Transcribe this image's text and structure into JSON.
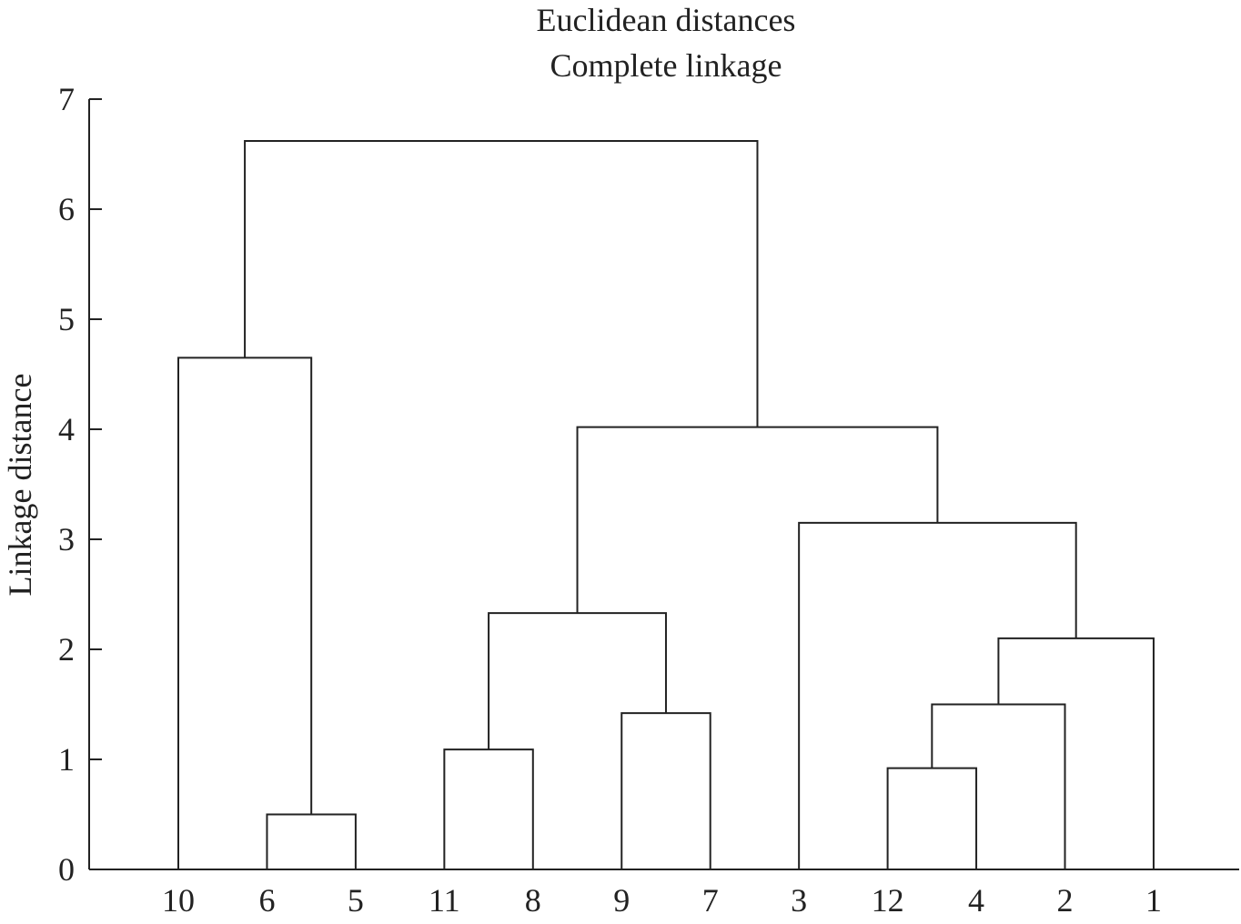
{
  "chart_data": {
    "type": "dendrogram",
    "title": "Euclidean distances",
    "subtitle": "Complete linkage",
    "ylabel": "Linkage distance",
    "xlabel": "",
    "ylim": [
      0,
      7
    ],
    "yticks": [
      0,
      1,
      2,
      3,
      4,
      5,
      6,
      7
    ],
    "leaf_order": [
      "10",
      "6",
      "5",
      "11",
      "8",
      "9",
      "7",
      "3",
      "12",
      "4",
      "2",
      "1"
    ],
    "merges": [
      {
        "id": "A",
        "left": "6",
        "right": "5",
        "height": 0.5
      },
      {
        "id": "B",
        "left": "12",
        "right": "4",
        "height": 0.92
      },
      {
        "id": "C",
        "left": "11",
        "right": "8",
        "height": 1.09
      },
      {
        "id": "D",
        "left": "9",
        "right": "7",
        "height": 1.42
      },
      {
        "id": "E",
        "left": "B",
        "right": "2",
        "height": 1.5
      },
      {
        "id": "F",
        "left": "E",
        "right": "1",
        "height": 2.1
      },
      {
        "id": "G",
        "left": "C",
        "right": "D",
        "height": 2.33
      },
      {
        "id": "H",
        "left": "3",
        "right": "F",
        "height": 3.15
      },
      {
        "id": "I",
        "left": "G",
        "right": "H",
        "height": 4.02
      },
      {
        "id": "J",
        "left": "10",
        "right": "A",
        "height": 4.65
      },
      {
        "id": "K",
        "left": "J",
        "right": "I",
        "height": 6.62
      }
    ],
    "grid": false,
    "legend": "none"
  }
}
